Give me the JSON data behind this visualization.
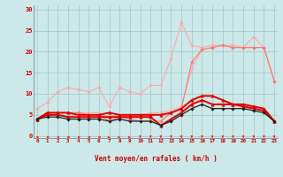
{
  "background_color": "#cce8e8",
  "grid_color": "#aacccc",
  "x_labels": [
    "0",
    "1",
    "2",
    "3",
    "4",
    "5",
    "6",
    "7",
    "8",
    "9",
    "10",
    "11",
    "12",
    "13",
    "14",
    "15",
    "16",
    "17",
    "18",
    "19",
    "20",
    "21",
    "22",
    "23"
  ],
  "xlabel": "Vent moyen/en rafales ( km/h )",
  "ylabel_ticks": [
    0,
    5,
    10,
    15,
    20,
    25,
    30
  ],
  "ylim": [
    -0.5,
    31
  ],
  "xlim": [
    -0.3,
    23.3
  ],
  "series": [
    {
      "name": "line1_light",
      "color": "#ffaaaa",
      "lw": 0.8,
      "marker": "D",
      "markersize": 1.8,
      "y": [
        6.5,
        8.0,
        10.5,
        11.5,
        11.0,
        10.5,
        11.5,
        7.0,
        11.5,
        10.5,
        10.0,
        12.0,
        12.0,
        18.5,
        27.0,
        21.5,
        21.0,
        21.5,
        21.5,
        21.5,
        21.0,
        23.5,
        21.0,
        13.0
      ]
    },
    {
      "name": "line2_light",
      "color": "#ffaaaa",
      "lw": 0.8,
      "marker": "D",
      "markersize": 1.8,
      "y": [
        4.0,
        5.5,
        5.5,
        5.5,
        5.5,
        5.5,
        5.5,
        4.0,
        5.0,
        5.0,
        5.0,
        5.5,
        5.5,
        6.0,
        7.0,
        16.0,
        20.5,
        21.0,
        21.5,
        21.0,
        21.0,
        21.0,
        21.0,
        13.0
      ]
    },
    {
      "name": "line3_med",
      "color": "#ff7777",
      "lw": 0.8,
      "marker": "D",
      "markersize": 1.8,
      "y": [
        4.0,
        5.5,
        5.5,
        5.5,
        5.5,
        5.0,
        5.0,
        3.5,
        4.5,
        4.0,
        3.5,
        3.5,
        3.5,
        5.5,
        6.5,
        17.5,
        20.5,
        21.0,
        21.5,
        21.0,
        21.0,
        21.0,
        21.0,
        13.0
      ]
    },
    {
      "name": "line4_dark",
      "color": "#dd0000",
      "lw": 1.4,
      "marker": "^",
      "markersize": 2.5,
      "y": [
        4.0,
        5.5,
        5.5,
        5.5,
        5.0,
        5.0,
        5.0,
        5.5,
        5.0,
        5.0,
        5.0,
        5.0,
        5.0,
        5.5,
        6.5,
        8.5,
        9.5,
        9.5,
        8.5,
        7.5,
        7.5,
        7.0,
        6.5,
        3.5
      ]
    },
    {
      "name": "line5_dark",
      "color": "#dd0000",
      "lw": 1.4,
      "marker": "^",
      "markersize": 2.5,
      "y": [
        4.0,
        5.0,
        5.0,
        4.5,
        4.5,
        4.5,
        4.5,
        4.5,
        4.5,
        4.5,
        4.5,
        4.5,
        2.5,
        4.0,
        5.5,
        7.5,
        8.5,
        7.5,
        7.5,
        7.5,
        7.0,
        6.5,
        6.0,
        3.5
      ]
    },
    {
      "name": "line6_black",
      "color": "#222222",
      "lw": 0.9,
      "marker": "D",
      "markersize": 1.8,
      "y": [
        4.0,
        4.5,
        4.5,
        4.0,
        4.0,
        4.0,
        4.0,
        3.5,
        4.0,
        3.5,
        3.5,
        3.5,
        2.5,
        3.5,
        5.0,
        6.5,
        7.5,
        6.5,
        6.5,
        6.5,
        6.5,
        6.0,
        5.5,
        3.5
      ]
    }
  ],
  "arrow_color": "#ff2222",
  "label_color": "#cc0000",
  "tick_fontsize": 4.2,
  "xlabel_fontsize": 5.5
}
